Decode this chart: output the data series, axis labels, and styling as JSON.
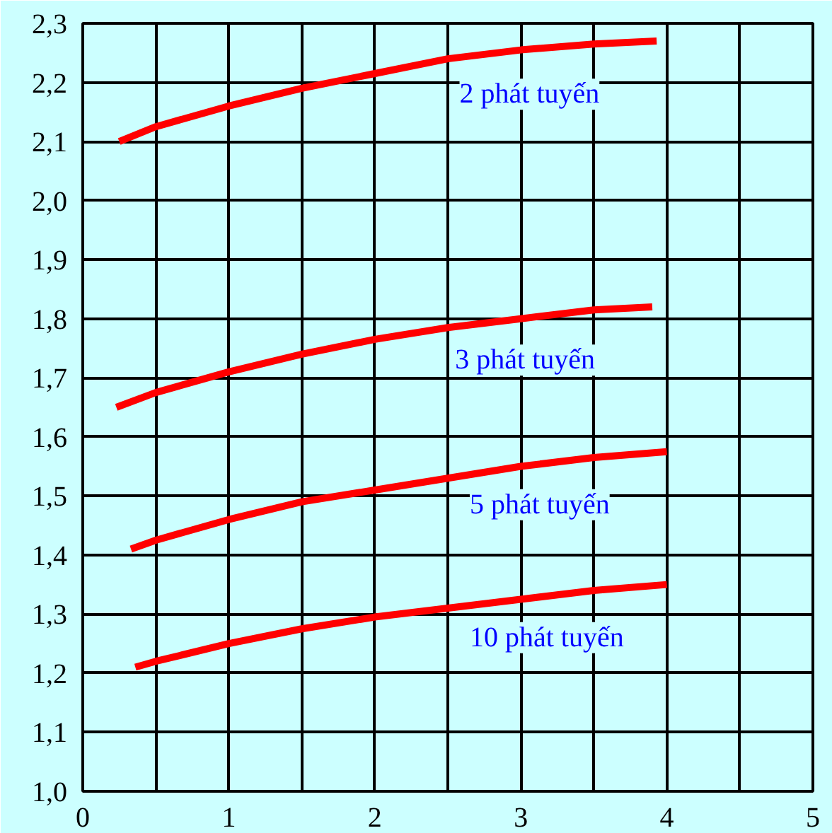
{
  "chart_data": {
    "type": "line",
    "xlim": [
      0,
      5
    ],
    "ylim": [
      1.0,
      2.3
    ],
    "xticks": [
      0,
      {
        "value": 0.5,
        "label": null
      },
      1,
      {
        "value": 1.5,
        "label": null
      },
      2,
      {
        "value": 2.5,
        "label": null
      },
      3,
      {
        "value": 3.5,
        "label": null
      },
      4,
      {
        "value": 4.5,
        "label": null
      },
      5
    ],
    "yticks": [
      {
        "value": 1.0,
        "label": "1,0"
      },
      {
        "value": 1.1,
        "label": "1,1"
      },
      {
        "value": 1.2,
        "label": "1,2"
      },
      {
        "value": 1.3,
        "label": "1,3"
      },
      {
        "value": 1.4,
        "label": "1,4"
      },
      {
        "value": 1.5,
        "label": "1,5"
      },
      {
        "value": 1.6,
        "label": "1,6"
      },
      {
        "value": 1.7,
        "label": "1,7"
      },
      {
        "value": 1.8,
        "label": "1,8"
      },
      {
        "value": 1.9,
        "label": "1,9"
      },
      {
        "value": 2.0,
        "label": "2,0"
      },
      {
        "value": 2.1,
        "label": "2,1"
      },
      {
        "value": 2.2,
        "label": "2,2"
      },
      {
        "value": 2.3,
        "label": "2,3"
      }
    ],
    "grid": true,
    "legend": false,
    "marker": "none",
    "line_style": "solid",
    "series": [
      {
        "name": "2 phát tuyến",
        "color": "#ff0000",
        "x": [
          0.25,
          0.5,
          1,
          1.5,
          2,
          2.5,
          3,
          3.5,
          3.93
        ],
        "values": [
          2.1,
          2.125,
          2.16,
          2.19,
          2.215,
          2.24,
          2.255,
          2.265,
          2.27
        ]
      },
      {
        "name": "3 phát tuyến",
        "color": "#ff0000",
        "x": [
          0.23,
          0.5,
          1,
          1.5,
          2,
          2.5,
          3,
          3.5,
          3.9
        ],
        "values": [
          1.65,
          1.675,
          1.71,
          1.74,
          1.765,
          1.785,
          1.8,
          1.815,
          1.82
        ]
      },
      {
        "name": "5 phát tuyến",
        "color": "#ff0000",
        "x": [
          0.33,
          0.5,
          1,
          1.5,
          2,
          2.5,
          3,
          3.5,
          4.0
        ],
        "values": [
          1.41,
          1.425,
          1.46,
          1.49,
          1.51,
          1.53,
          1.55,
          1.565,
          1.575
        ]
      },
      {
        "name": "10 phát tuyến",
        "color": "#ff0000",
        "x": [
          0.36,
          0.5,
          1,
          1.5,
          2,
          2.5,
          3,
          3.5,
          4.0
        ],
        "values": [
          1.21,
          1.22,
          1.25,
          1.275,
          1.295,
          1.31,
          1.325,
          1.34,
          1.35
        ]
      }
    ]
  }
}
